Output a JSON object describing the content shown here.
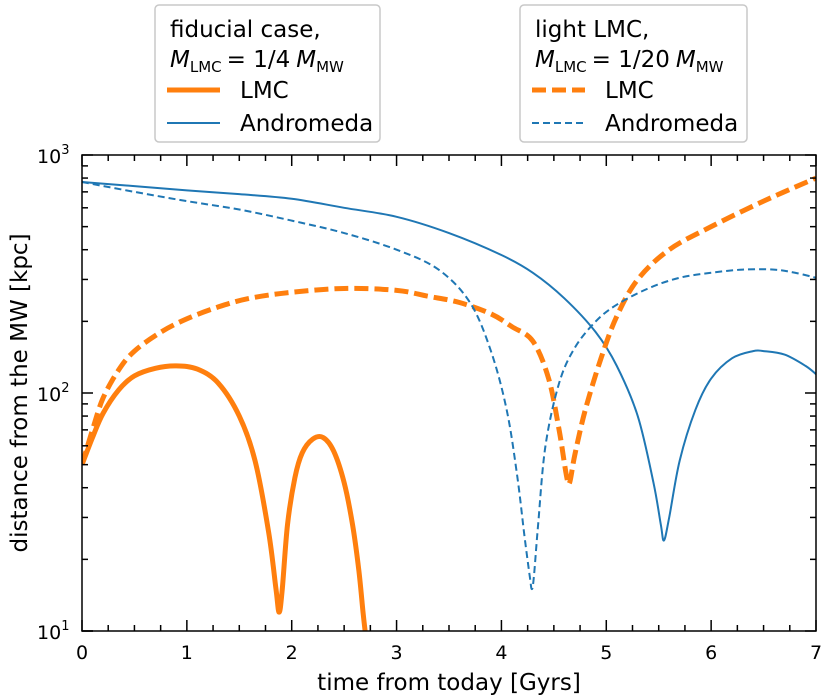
{
  "chart_data": {
    "type": "line",
    "xlabel": "time from today [Gyrs]",
    "ylabel": "distance from the MW  [kpc]",
    "xlim": [
      0,
      7
    ],
    "ylim": [
      10,
      1000
    ],
    "yscale": "log",
    "x_ticks": [
      "0",
      "1",
      "2",
      "3",
      "4",
      "5",
      "6",
      "7"
    ],
    "y_tick_base": "10",
    "y_tick_exponents": [
      "1",
      "2",
      "3"
    ],
    "legends": [
      {
        "title_line1": "fiducial case,",
        "title_m_sub": "LMC",
        "title_ratio": "= 1/4",
        "title_mw_sub": "MW",
        "entries": [
          {
            "label": "LMC",
            "series": "fid_lmc"
          },
          {
            "label": "Andromeda",
            "series": "fid_andromeda"
          }
        ]
      },
      {
        "title_line1": "light LMC,",
        "title_m_sub": "LMC",
        "title_ratio": "= 1/20",
        "title_mw_sub": "MW",
        "entries": [
          {
            "label": "LMC",
            "series": "light_lmc"
          },
          {
            "label": "Andromeda",
            "series": "light_andromeda"
          }
        ]
      }
    ],
    "series": [
      {
        "name": "fid_lmc",
        "legend": "LMC (fiducial)",
        "color": "#ff7f0e",
        "style": "solid",
        "width": "thick",
        "x": [
          0.0,
          0.1,
          0.2,
          0.35,
          0.5,
          0.7,
          0.9,
          1.1,
          1.3,
          1.5,
          1.65,
          1.78,
          1.85,
          1.88,
          1.91,
          1.96,
          2.03,
          2.1,
          2.2,
          2.3,
          2.4,
          2.5,
          2.58,
          2.64,
          2.68,
          2.7
        ],
        "y": [
          50,
          65,
          82,
          103,
          118,
          127,
          130,
          126,
          110,
          80,
          52,
          26,
          15,
          12,
          15,
          28,
          44,
          56,
          64,
          65,
          57,
          42,
          28,
          18,
          12,
          10
        ]
      },
      {
        "name": "fid_andromeda",
        "legend": "Andromeda (fiducial)",
        "color": "#1f77b4",
        "style": "solid",
        "width": "thin",
        "x": [
          0.0,
          0.5,
          1.0,
          1.5,
          2.0,
          2.5,
          3.0,
          3.5,
          4.0,
          4.3,
          4.6,
          4.9,
          5.1,
          5.3,
          5.45,
          5.52,
          5.55,
          5.6,
          5.7,
          5.85,
          6.0,
          6.2,
          6.4,
          6.5,
          6.7,
          6.9,
          7.0
        ],
        "y": [
          770,
          740,
          710,
          685,
          655,
          600,
          550,
          470,
          380,
          320,
          250,
          180,
          130,
          80,
          42,
          28,
          24,
          30,
          52,
          85,
          115,
          140,
          150,
          150,
          145,
          130,
          120
        ]
      },
      {
        "name": "light_lmc",
        "legend": "LMC (light LMC)",
        "color": "#ff7f0e",
        "style": "dashed",
        "width": "thick",
        "x": [
          0.0,
          0.1,
          0.2,
          0.35,
          0.5,
          0.75,
          1.0,
          1.3,
          1.6,
          2.0,
          2.5,
          3.0,
          3.3,
          3.6,
          3.9,
          4.1,
          4.3,
          4.45,
          4.55,
          4.62,
          4.65,
          4.7,
          4.8,
          4.95,
          5.1,
          5.3,
          5.6,
          6.0,
          6.5,
          7.0
        ],
        "y": [
          50,
          70,
          95,
          125,
          150,
          180,
          205,
          230,
          250,
          265,
          275,
          270,
          255,
          240,
          215,
          190,
          165,
          115,
          70,
          45,
          42,
          55,
          85,
          140,
          210,
          300,
          400,
          500,
          640,
          800
        ],
        "end_x": 7.0
      },
      {
        "name": "light_andromeda",
        "legend": "Andromeda (light LMC)",
        "color": "#1f77b4",
        "style": "dashed",
        "width": "thin",
        "x": [
          0.0,
          0.5,
          1.0,
          1.5,
          2.0,
          2.5,
          3.0,
          3.4,
          3.7,
          3.9,
          4.05,
          4.15,
          4.22,
          4.27,
          4.29,
          4.31,
          4.35,
          4.42,
          4.55,
          4.7,
          4.9,
          5.1,
          5.4,
          5.7,
          6.0,
          6.3,
          6.6,
          6.8,
          7.0
        ],
        "y": [
          770,
          700,
          640,
          590,
          530,
          470,
          400,
          330,
          240,
          150,
          85,
          45,
          25,
          17,
          15,
          17,
          28,
          60,
          110,
          155,
          200,
          235,
          275,
          305,
          320,
          330,
          330,
          320,
          305
        ]
      }
    ]
  }
}
